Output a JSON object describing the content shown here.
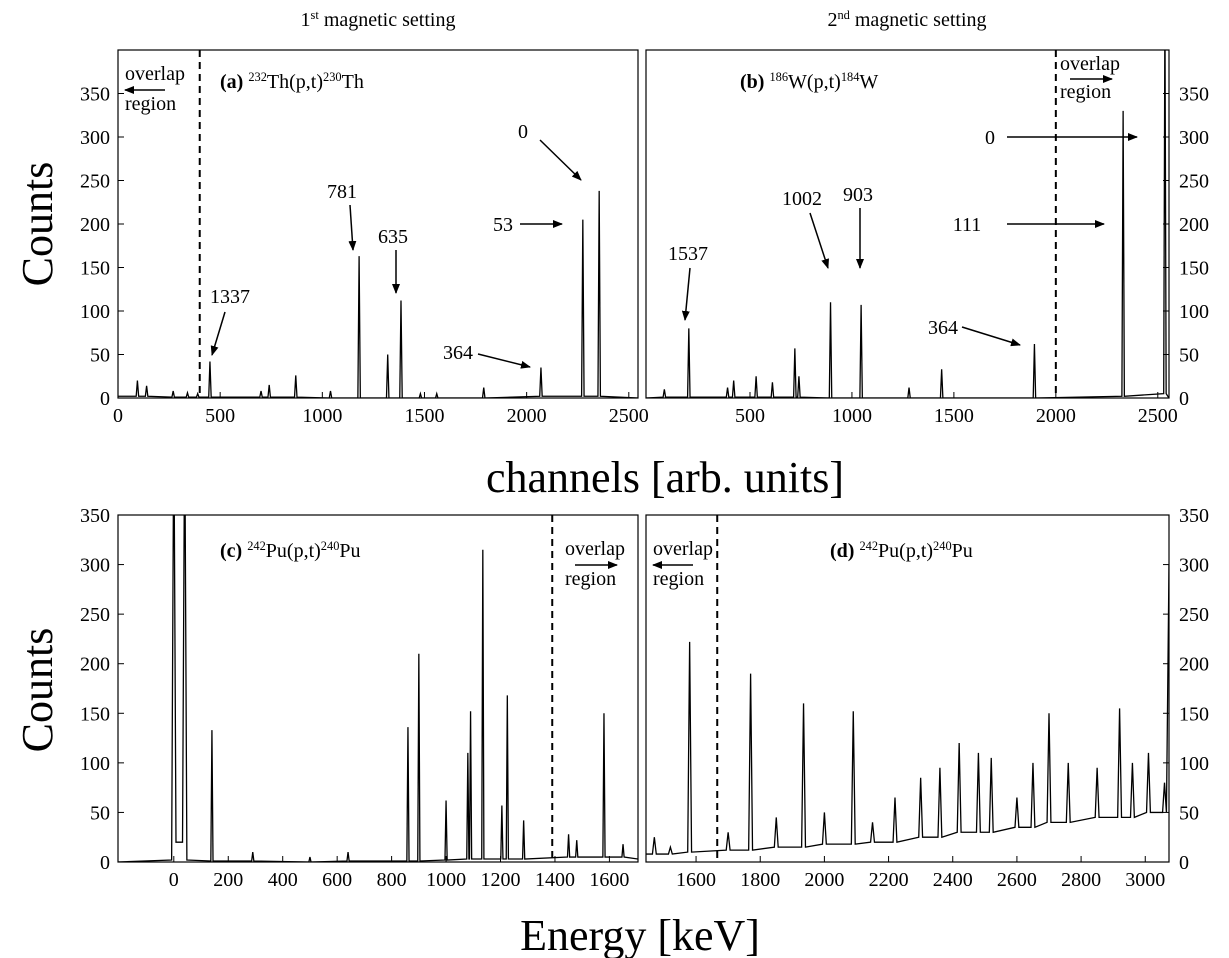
{
  "chart_data": [
    {
      "type": "line",
      "title": [
        {
          "text": "1"
        },
        {
          "text": "st",
          "style": "sup"
        },
        {
          "text": " magnetic setting"
        }
      ],
      "label": [
        {
          "text": "(a)",
          "style": "bold"
        },
        {
          "text": " "
        },
        {
          "text": "232",
          "style": "sup"
        },
        {
          "text": "Th(p,t)"
        },
        {
          "text": "230",
          "style": "sup"
        },
        {
          "text": "Th"
        }
      ],
      "ylabel": "Counts",
      "xlabel": "channels [arb. units]",
      "color": "#000000",
      "xlim": [
        0,
        2545
      ],
      "ylim": [
        0,
        400
      ],
      "xticks": [
        0,
        500,
        1000,
        1500,
        2000,
        2500
      ],
      "yticks": [
        0,
        50,
        100,
        150,
        200,
        250,
        300,
        350
      ],
      "dashed_line": 400,
      "overlap_label": [
        "overlap",
        "region"
      ],
      "annotations": [
        "1337",
        "781",
        "635",
        "364",
        "53",
        "0"
      ],
      "x": [
        0,
        89,
        95,
        101,
        134,
        140,
        146,
        264,
        270,
        276,
        334,
        340,
        346,
        384,
        390,
        396,
        444,
        450,
        456,
        694,
        700,
        706,
        734,
        740,
        746,
        864,
        870,
        876,
        1034,
        1040,
        1046,
        1174,
        1180,
        1186,
        1314,
        1320,
        1326,
        1379,
        1385,
        1391,
        1474,
        1480,
        1486,
        1554,
        1560,
        1566,
        1784,
        1790,
        1796,
        2064,
        2070,
        2076,
        2269,
        2275,
        2281,
        2349,
        2355,
        2361,
        2545
      ],
      "values": [
        2,
        2,
        20,
        2,
        2,
        14,
        2,
        1,
        8,
        1,
        1,
        6,
        1,
        1,
        5,
        1,
        1,
        42,
        1,
        1,
        8,
        1,
        1,
        15,
        1,
        1,
        26,
        1,
        0,
        8,
        0,
        0,
        163,
        0,
        0,
        50,
        0,
        0,
        112,
        0,
        0,
        5,
        0,
        0,
        5,
        0,
        0,
        12,
        0,
        2,
        35,
        2,
        2,
        205,
        2,
        2,
        238,
        2,
        0
      ]
    },
    {
      "type": "line",
      "title": [
        {
          "text": "2"
        },
        {
          "text": "nd",
          "style": "sup"
        },
        {
          "text": " magnetic setting"
        }
      ],
      "label": [
        {
          "text": "(b)",
          "style": "bold"
        },
        {
          "text": " "
        },
        {
          "text": "186",
          "style": "sup"
        },
        {
          "text": "W(p,t)"
        },
        {
          "text": "184",
          "style": "sup"
        },
        {
          "text": "W"
        }
      ],
      "color": "#000000",
      "xlim": [
        -10,
        2555
      ],
      "ylim": [
        0,
        400
      ],
      "xticks": [
        500,
        1000,
        1500,
        2000,
        2500
      ],
      "yticks": [
        0,
        50,
        100,
        150,
        200,
        250,
        300,
        350
      ],
      "dashed_line": 2000,
      "overlap_label": [
        "overlap",
        "region"
      ],
      "annotations": [
        "1537",
        "1002",
        "903",
        "364",
        "111",
        "0"
      ],
      "x": [
        -10,
        74,
        80,
        86,
        194,
        200,
        206,
        384,
        390,
        396,
        414,
        420,
        426,
        524,
        530,
        536,
        604,
        610,
        616,
        714,
        720,
        726,
        734,
        740,
        746,
        889,
        895,
        901,
        1039,
        1045,
        1051,
        1274,
        1280,
        1286,
        1434,
        1440,
        1446,
        1889,
        1895,
        1901,
        2324,
        2330,
        2336,
        2529,
        2535,
        2541,
        2555
      ],
      "values": [
        0,
        1,
        10,
        1,
        1,
        80,
        1,
        1,
        12,
        1,
        1,
        20,
        1,
        1,
        25,
        1,
        1,
        18,
        1,
        1,
        57,
        1,
        1,
        25,
        1,
        0,
        110,
        0,
        0,
        107,
        0,
        0,
        12,
        0,
        0,
        33,
        0,
        0,
        62,
        0,
        2,
        330,
        2,
        5,
        450,
        5,
        0
      ]
    },
    {
      "type": "line",
      "label": [
        {
          "text": "(c)",
          "style": "bold"
        },
        {
          "text": " "
        },
        {
          "text": "242",
          "style": "sup"
        },
        {
          "text": "Pu(p,t)"
        },
        {
          "text": "240",
          "style": "sup"
        },
        {
          "text": "Pu"
        }
      ],
      "ylabel": "Counts",
      "xlabel": "Energy [keV]",
      "color": "#000000",
      "xlim": [
        -205,
        1705
      ],
      "ylim": [
        0,
        350
      ],
      "xticks": [
        0,
        200,
        400,
        600,
        800,
        1000,
        1200,
        1400,
        1600
      ],
      "yticks": [
        0,
        50,
        100,
        150,
        200,
        250,
        300,
        350
      ],
      "dashed_line": 1390,
      "overlap_label": [
        "overlap",
        "region"
      ],
      "x": [
        -205,
        -8,
        0,
        8,
        32,
        40,
        48,
        136,
        140,
        144,
        286,
        290,
        294,
        496,
        500,
        504,
        636,
        640,
        644,
        856,
        860,
        864,
        896,
        900,
        904,
        996,
        1000,
        1004,
        1076,
        1080,
        1084,
        1086,
        1090,
        1094,
        1131,
        1135,
        1139,
        1201,
        1205,
        1209,
        1221,
        1225,
        1229,
        1281,
        1285,
        1289,
        1446,
        1450,
        1454,
        1476,
        1480,
        1484,
        1576,
        1580,
        1584,
        1646,
        1650,
        1654,
        1705
      ],
      "values": [
        0,
        2,
        450,
        20,
        20,
        450,
        2,
        1,
        133,
        1,
        1,
        10,
        1,
        0,
        5,
        0,
        1,
        10,
        1,
        1,
        136,
        1,
        1,
        210,
        1,
        2,
        62,
        2,
        3,
        110,
        3,
        3,
        152,
        3,
        3,
        315,
        3,
        3,
        57,
        3,
        3,
        168,
        3,
        3,
        42,
        3,
        5,
        28,
        5,
        5,
        22,
        5,
        5,
        150,
        5,
        5,
        18,
        5,
        3
      ]
    },
    {
      "type": "line",
      "label": [
        {
          "text": "(d)",
          "style": "bold"
        },
        {
          "text": " "
        },
        {
          "text": "242",
          "style": "sup"
        },
        {
          "text": "Pu(p,t)"
        },
        {
          "text": "240",
          "style": "sup"
        },
        {
          "text": "Pu"
        }
      ],
      "color": "#000000",
      "xlim": [
        1444,
        3074
      ],
      "ylim": [
        0,
        350
      ],
      "xticks": [
        1600,
        1800,
        2000,
        2200,
        2400,
        2600,
        2800,
        3000
      ],
      "yticks": [
        0,
        50,
        100,
        150,
        200,
        250,
        300,
        350
      ],
      "dashed_line": 1666,
      "overlap_label": [
        "overlap",
        "region"
      ],
      "x": [
        1444,
        1464,
        1470,
        1476,
        1514,
        1520,
        1526,
        1574,
        1580,
        1586,
        1694,
        1700,
        1706,
        1764,
        1770,
        1776,
        1844,
        1850,
        1856,
        1929,
        1935,
        1941,
        1994,
        2000,
        2006,
        2084,
        2090,
        2096,
        2144,
        2150,
        2156,
        2214,
        2220,
        2226,
        2294,
        2300,
        2306,
        2354,
        2360,
        2366,
        2414,
        2420,
        2426,
        2474,
        2480,
        2486,
        2514,
        2520,
        2526,
        2594,
        2600,
        2606,
        2644,
        2650,
        2656,
        2694,
        2700,
        2706,
        2754,
        2760,
        2766,
        2844,
        2850,
        2856,
        2914,
        2920,
        2926,
        2954,
        2960,
        2966,
        3004,
        3010,
        3016,
        3054,
        3060,
        3066,
        3074
      ],
      "values": [
        8,
        8,
        25,
        8,
        8,
        15,
        8,
        10,
        222,
        10,
        12,
        30,
        12,
        12,
        190,
        12,
        15,
        45,
        15,
        15,
        160,
        15,
        18,
        50,
        18,
        18,
        152,
        18,
        20,
        40,
        20,
        20,
        65,
        20,
        25,
        85,
        25,
        25,
        95,
        25,
        30,
        120,
        30,
        30,
        110,
        30,
        30,
        105,
        30,
        35,
        65,
        35,
        35,
        100,
        35,
        40,
        150,
        40,
        40,
        100,
        40,
        45,
        95,
        45,
        45,
        155,
        45,
        45,
        100,
        45,
        50,
        110,
        50,
        50,
        80,
        50,
        300
      ]
    }
  ]
}
